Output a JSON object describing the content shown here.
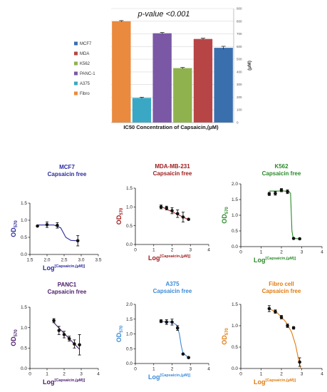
{
  "chart_data": [
    {
      "type": "bar",
      "annotation": "p-value <0.001",
      "xlabel": "IC50 Concentration of Capsaicin,(μM)",
      "ylabel": "(μM)",
      "ylim": [
        0,
        900
      ],
      "yticks": [
        0,
        100,
        200,
        300,
        400,
        500,
        600,
        700,
        800,
        900
      ],
      "legend": "left",
      "legend_entries": [
        "MCF7",
        "MDA",
        "K562",
        "PANC-1",
        "A375",
        "Fibro"
      ],
      "legend_colors": [
        "#3a6fae",
        "#b84545",
        "#8fb24e",
        "#7a58a6",
        "#3aa8c4",
        "#ea8a3e"
      ],
      "bars": [
        {
          "series": "Fibro",
          "value": 800,
          "error": 5,
          "color": "#ea8a3e"
        },
        {
          "series": "A375",
          "value": 195,
          "error": 5,
          "color": "#3aa8c4"
        },
        {
          "series": "PANC-1",
          "value": 705,
          "error": 6,
          "color": "#7a58a6"
        },
        {
          "series": "K562",
          "value": 430,
          "error": 5,
          "color": "#8fb24e"
        },
        {
          "series": "MDA",
          "value": 660,
          "error": 6,
          "color": "#b84545"
        },
        {
          "series": "MCF7",
          "value": 590,
          "error": 12,
          "color": "#3a6fae"
        }
      ]
    },
    {
      "type": "scatter",
      "title": "MCF7",
      "subtitle": "Capsaicin free",
      "color": "#2a2a9e",
      "ylabel_main": "OD",
      "ylabel_sub": "570",
      "xlabel_main": "Log",
      "xlabel_sup": "[Capsaicin,(μM)]",
      "xlim": [
        1.5,
        3.5
      ],
      "ylim": [
        0,
        1.5
      ],
      "xticks": [
        "1.5",
        "2.0",
        "2.5",
        "3.0",
        "3.5"
      ],
      "xtick_values": [
        1.5,
        2.0,
        2.5,
        3.0,
        3.5
      ],
      "yticks": [
        "0.0",
        "0.5",
        "1.0",
        "1.5"
      ],
      "ytick_values": [
        0,
        0.5,
        1.0,
        1.5
      ],
      "points": [
        {
          "x": 1.72,
          "y": 0.83,
          "err": 0.0
        },
        {
          "x": 2.0,
          "y": 0.87,
          "err": 0.08
        },
        {
          "x": 2.3,
          "y": 0.85,
          "err": 0.08
        },
        {
          "x": 2.9,
          "y": 0.4,
          "err": 0.15
        }
      ],
      "curve": [
        [
          1.72,
          0.86
        ],
        [
          2.2,
          0.86
        ],
        [
          2.4,
          0.78
        ],
        [
          2.55,
          0.5
        ],
        [
          2.7,
          0.41
        ],
        [
          2.9,
          0.4
        ]
      ]
    },
    {
      "type": "scatter",
      "title": "MDA-MB-231",
      "subtitle": "Capsaicin free",
      "color": "#a01c1c",
      "ylabel_main": "OD",
      "ylabel_sub": "570",
      "xlabel_main": "Log",
      "xlabel_sup": "[Capsaicin,(μM)]",
      "xlim": [
        0,
        4
      ],
      "ylim": [
        0,
        1.5
      ],
      "xticks": [
        "0",
        "1",
        "2",
        "3",
        "4"
      ],
      "xtick_values": [
        0,
        1,
        2,
        3,
        4
      ],
      "yticks": [
        "0.0",
        "0.5",
        "1.0",
        "1.5"
      ],
      "ytick_values": [
        0,
        0.5,
        1.0,
        1.5
      ],
      "points": [
        {
          "x": 1.4,
          "y": 1.0,
          "err": 0.05
        },
        {
          "x": 1.7,
          "y": 0.97,
          "err": 0.05
        },
        {
          "x": 2.0,
          "y": 0.9,
          "err": 0.08
        },
        {
          "x": 2.3,
          "y": 0.82,
          "err": 0.1
        },
        {
          "x": 2.6,
          "y": 0.73,
          "err": 0.13
        },
        {
          "x": 2.9,
          "y": 0.67,
          "err": 0.0
        }
      ],
      "curve": [
        [
          1.4,
          1.01
        ],
        [
          2.9,
          0.66
        ]
      ]
    },
    {
      "type": "scatter",
      "title": "K562",
      "subtitle": "Capsaicin free",
      "color": "#2a8a2a",
      "ylabel_main": "OD",
      "ylabel_sub": "570",
      "xlabel_main": "Log",
      "xlabel_sup": "[Capsaicin,(μM)]",
      "xlim": [
        0,
        4
      ],
      "ylim": [
        0,
        2.0
      ],
      "xticks": [
        "0",
        "1",
        "2",
        "3",
        "4"
      ],
      "xtick_values": [
        0,
        1,
        2,
        3,
        4
      ],
      "yticks": [
        "0.0",
        "0.5",
        "1.0",
        "1.5",
        "2.0"
      ],
      "ytick_values": [
        0,
        0.5,
        1.0,
        1.5,
        2.0
      ],
      "points": [
        {
          "x": 1.4,
          "y": 1.68,
          "err": 0.05
        },
        {
          "x": 1.7,
          "y": 1.7,
          "err": 0.06
        },
        {
          "x": 2.0,
          "y": 1.8,
          "err": 0.05
        },
        {
          "x": 2.3,
          "y": 1.75,
          "err": 0.06
        },
        {
          "x": 2.6,
          "y": 0.26,
          "err": 0.02
        },
        {
          "x": 2.9,
          "y": 0.25,
          "err": 0.02
        }
      ],
      "curve": [
        [
          1.4,
          1.77
        ],
        [
          2.35,
          1.77
        ],
        [
          2.45,
          1.7
        ],
        [
          2.52,
          0.5
        ],
        [
          2.58,
          0.26
        ],
        [
          2.9,
          0.25
        ]
      ]
    },
    {
      "type": "scatter",
      "title": "PANC1",
      "subtitle": "Capsaicin free",
      "color": "#4a1a6a",
      "ylabel_main": "OD",
      "ylabel_sub": "570",
      "xlabel_main": "Log",
      "xlabel_sup": "[Capsaicin,(μM)]",
      "xlim": [
        0,
        4
      ],
      "ylim": [
        0,
        1.5
      ],
      "xticks": [
        "0",
        "1",
        "2",
        "3",
        "4"
      ],
      "xtick_values": [
        0,
        1,
        2,
        3,
        4
      ],
      "yticks": [
        "0.0",
        "0.5",
        "1.0",
        "1.5"
      ],
      "ytick_values": [
        0,
        0.5,
        1.0,
        1.5
      ],
      "points": [
        {
          "x": 1.4,
          "y": 1.17,
          "err": 0.05
        },
        {
          "x": 1.7,
          "y": 0.93,
          "err": 0.1
        },
        {
          "x": 2.0,
          "y": 0.83,
          "err": 0.08
        },
        {
          "x": 2.3,
          "y": 0.73,
          "err": 0.06
        },
        {
          "x": 2.6,
          "y": 0.6,
          "err": 0.1
        },
        {
          "x": 2.9,
          "y": 0.58,
          "err": 0.25
        }
      ],
      "curve": [
        [
          1.4,
          1.12
        ],
        [
          2.9,
          0.47
        ]
      ]
    },
    {
      "type": "scatter",
      "title": "A375",
      "subtitle": "Capsaicin free",
      "color": "#3a8ad8",
      "ylabel_main": "OD",
      "ylabel_sub": "570",
      "xlabel_main": "Log",
      "xlabel_sup": "[Capsaicin,(μM)]",
      "xlim": [
        0,
        4
      ],
      "ylim": [
        0,
        2.0
      ],
      "xticks": [
        "0",
        "1",
        "2",
        "3",
        "4"
      ],
      "xtick_values": [
        0,
        1,
        2,
        3,
        4
      ],
      "yticks": [
        "0.0",
        "0.5",
        "1.0",
        "1.5",
        "2.0"
      ],
      "ytick_values": [
        0,
        0.5,
        1.0,
        1.5,
        2.0
      ],
      "points": [
        {
          "x": 1.4,
          "y": 1.43,
          "err": 0.05
        },
        {
          "x": 1.7,
          "y": 1.4,
          "err": 0.08
        },
        {
          "x": 2.0,
          "y": 1.4,
          "err": 0.1
        },
        {
          "x": 2.3,
          "y": 1.2,
          "err": 0.08
        },
        {
          "x": 2.6,
          "y": 0.32,
          "err": 0.02
        },
        {
          "x": 2.9,
          "y": 0.2,
          "err": 0.02
        }
      ],
      "curve": [
        [
          1.4,
          1.42
        ],
        [
          2.0,
          1.4
        ],
        [
          2.25,
          1.3
        ],
        [
          2.4,
          1.0
        ],
        [
          2.5,
          0.6
        ],
        [
          2.6,
          0.35
        ],
        [
          2.9,
          0.2
        ]
      ]
    },
    {
      "type": "scatter",
      "title": "Fibro cell",
      "subtitle": "Capsaicin free",
      "color": "#e07b10",
      "ylabel_main": "OD",
      "ylabel_sub": "570",
      "xlabel_main": "Log",
      "xlabel_sup": "[Capsaicin,(μM)]",
      "xlim": [
        0,
        4
      ],
      "ylim": [
        0,
        1.5
      ],
      "xticks": [
        "0",
        "1",
        "2",
        "3",
        "4"
      ],
      "xtick_values": [
        0,
        1,
        2,
        3,
        4
      ],
      "yticks": [
        "0.0",
        "0.5",
        "1.0",
        "1.5"
      ],
      "ytick_values": [
        0,
        0.5,
        1.0,
        1.5
      ],
      "points": [
        {
          "x": 1.4,
          "y": 1.4,
          "err": 0.07
        },
        {
          "x": 1.7,
          "y": 1.33,
          "err": 0.04
        },
        {
          "x": 2.0,
          "y": 1.2,
          "err": 0.04
        },
        {
          "x": 2.3,
          "y": 1.0,
          "err": 0.04
        },
        {
          "x": 2.6,
          "y": 0.95,
          "err": 0.03
        },
        {
          "x": 2.9,
          "y": 0.15,
          "err": 0.1
        }
      ],
      "curve": [
        [
          1.4,
          1.4
        ],
        [
          1.8,
          1.3
        ],
        [
          2.2,
          1.1
        ],
        [
          2.5,
          0.85
        ],
        [
          2.7,
          0.55
        ],
        [
          2.85,
          0.2
        ],
        [
          2.95,
          0.0
        ]
      ]
    }
  ]
}
